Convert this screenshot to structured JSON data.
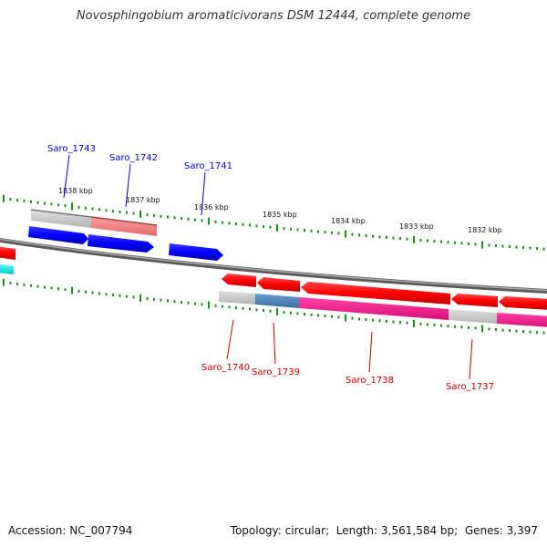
{
  "title": "Novosphingobium aromaticivorans DSM 12444, complete genome",
  "footer": {
    "accession_label": "Accession:",
    "accession": "NC_007794",
    "topology_label": "Topology:",
    "topology": "circular",
    "length_label": "Length:",
    "length": "3,561,584 bp",
    "genes_label": "Genes:",
    "genes": "3,397"
  },
  "ticks": [
    "1838 kbp",
    "1837 kbp",
    "1836 kbp",
    "1835 kbp",
    "1834 kbp",
    "1833 kbp",
    "1832 kbp"
  ],
  "genes_forward": [
    {
      "label": "Saro_1743",
      "color": "#0000ff"
    },
    {
      "label": "Saro_1742",
      "color": "#0000ff"
    },
    {
      "label": "Saro_1741",
      "color": "#0000ff"
    }
  ],
  "genes_reverse": [
    {
      "label": "Saro_1740",
      "color": "#ff0000"
    },
    {
      "label": "Saro_1739",
      "color": "#ff0000"
    },
    {
      "label": "Saro_1738",
      "color": "#ff0000"
    },
    {
      "label": "Saro_1737",
      "color": "#ff0000"
    }
  ],
  "colors": {
    "backbone": "#808080",
    "tick_green": "#228822",
    "forward_gene": "#0000ff",
    "reverse_gene": "#ff0000",
    "cyan_gene": "#00ffff",
    "feature_grey": "#c8c8c8",
    "feature_salmon": "#f08080",
    "feature_steelblue": "#4682b4",
    "feature_magenta": "#ff1493"
  }
}
